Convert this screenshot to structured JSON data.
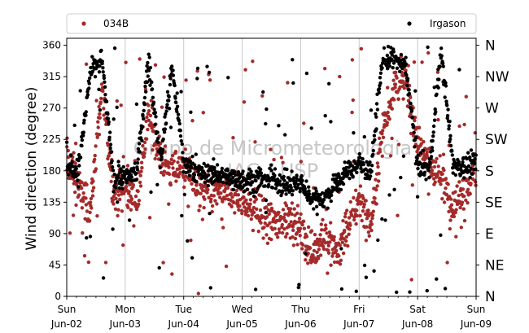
{
  "chart_data": {
    "type": "scatter",
    "ylabel": "Wind direction (degree)",
    "xlabel": "",
    "ylim": [
      0,
      370
    ],
    "xlim_days": [
      0,
      7
    ],
    "y_ticks": [
      "0",
      "45",
      "90",
      "135",
      "180",
      "225",
      "270",
      "315",
      "360"
    ],
    "compass_labels": [
      "N",
      "NE",
      "E",
      "SE",
      "S",
      "SW",
      "W",
      "NW",
      "N"
    ],
    "x_ticks": [
      {
        "day": "Sun",
        "date": "Jun-02"
      },
      {
        "day": "Mon",
        "date": "Jun-03"
      },
      {
        "day": "Tue",
        "date": "Jun-04"
      },
      {
        "day": "Wed",
        "date": "Jun-05"
      },
      {
        "day": "Thu",
        "date": "Jun-06"
      },
      {
        "day": "Fri",
        "date": "Jun-07"
      },
      {
        "day": "Sat",
        "date": "Jun-08"
      },
      {
        "day": "Sun",
        "date": "Jun-09"
      }
    ],
    "watermark": [
      "Grupo de Micrometeorologia",
      "IAG / USP"
    ],
    "legend_position": "top",
    "grid": "vertical",
    "series": [
      {
        "name": "034B",
        "color": "#a52a2a",
        "profile": [
          [
            0.0,
            200
          ],
          [
            0.2,
            160
          ],
          [
            0.4,
            120
          ],
          [
            0.6,
            300
          ],
          [
            0.8,
            150
          ],
          [
            1.0,
            150
          ],
          [
            1.2,
            140
          ],
          [
            1.4,
            260
          ],
          [
            1.6,
            200
          ],
          [
            1.8,
            180
          ],
          [
            2.0,
            190
          ],
          [
            2.2,
            155
          ],
          [
            2.4,
            150
          ],
          [
            2.6,
            150
          ],
          [
            2.8,
            145
          ],
          [
            3.0,
            140
          ],
          [
            3.2,
            125
          ],
          [
            3.4,
            110
          ],
          [
            3.6,
            105
          ],
          [
            3.8,
            115
          ],
          [
            4.0,
            95
          ],
          [
            4.2,
            60
          ],
          [
            4.4,
            90
          ],
          [
            4.6,
            60
          ],
          [
            4.8,
            100
          ],
          [
            5.0,
            140
          ],
          [
            5.2,
            100
          ],
          [
            5.4,
            240
          ],
          [
            5.6,
            300
          ],
          [
            5.8,
            310
          ],
          [
            6.0,
            230
          ],
          [
            6.2,
            190
          ],
          [
            6.4,
            170
          ],
          [
            6.6,
            130
          ],
          [
            6.8,
            155
          ],
          [
            7.0,
            180
          ]
        ]
      },
      {
        "name": "Irgason",
        "color": "#000000",
        "profile": [
          [
            0.0,
            185
          ],
          [
            0.2,
            180
          ],
          [
            0.4,
            320
          ],
          [
            0.6,
            340
          ],
          [
            0.8,
            170
          ],
          [
            1.0,
            170
          ],
          [
            1.2,
            180
          ],
          [
            1.4,
            340
          ],
          [
            1.6,
            190
          ],
          [
            1.8,
            330
          ],
          [
            2.0,
            190
          ],
          [
            2.2,
            180
          ],
          [
            2.4,
            175
          ],
          [
            2.6,
            175
          ],
          [
            2.8,
            170
          ],
          [
            3.0,
            168
          ],
          [
            3.2,
            165
          ],
          [
            3.4,
            168
          ],
          [
            3.6,
            165
          ],
          [
            3.8,
            160
          ],
          [
            4.0,
            162
          ],
          [
            4.2,
            140
          ],
          [
            4.4,
            140
          ],
          [
            4.6,
            160
          ],
          [
            4.8,
            180
          ],
          [
            5.0,
            190
          ],
          [
            5.2,
            180
          ],
          [
            5.4,
            340
          ],
          [
            5.6,
            340
          ],
          [
            5.8,
            330
          ],
          [
            6.0,
            190
          ],
          [
            6.2,
            180
          ],
          [
            6.4,
            350
          ],
          [
            6.6,
            190
          ],
          [
            6.8,
            185
          ],
          [
            7.0,
            190
          ]
        ]
      }
    ]
  }
}
